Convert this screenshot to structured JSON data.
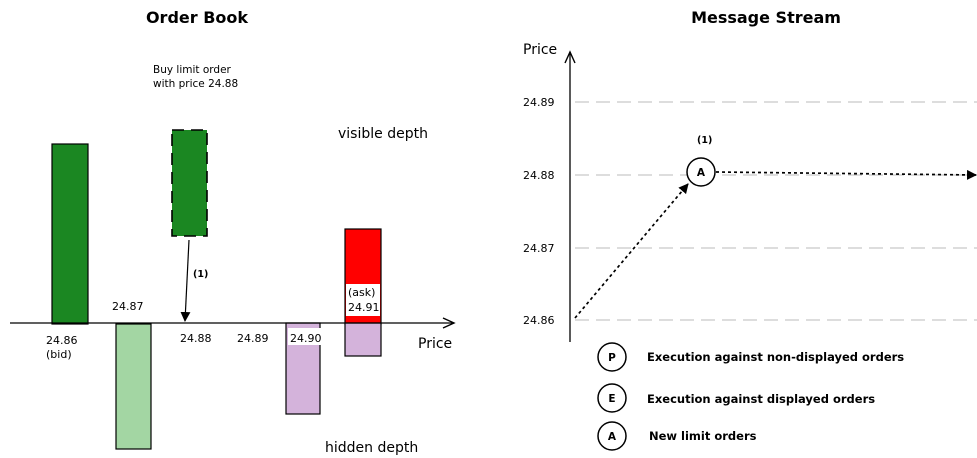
{
  "order_book": {
    "title": "Order Book",
    "annotation_line1": "Buy  limit order",
    "annotation_line2": "with price 24.88",
    "visible_label": "visible depth",
    "hidden_label": "hidden depth",
    "axis_label": "Price",
    "marker": "(1)",
    "price_labels": {
      "p2486": "24.86",
      "bid": "(bid)",
      "p2487": "24.87",
      "p2488": "24.88",
      "p2489": "24.89",
      "p2490": "24.90",
      "ask": "(ask)",
      "p2491": "24.91"
    },
    "colors": {
      "visible_bid": "#1b8722",
      "hidden_bid": "#a3d6a3",
      "hidden_ask": "#d4b3db",
      "ask": "#ff0000"
    }
  },
  "message_stream": {
    "title": "Message Stream",
    "y_axis_label": "Price",
    "y_ticks": [
      "24.89",
      "24.88",
      "24.87",
      "24.86"
    ],
    "marker": "(1)",
    "event_node_letter": "A"
  },
  "legend": [
    {
      "letter": "P",
      "text": "Execution against non-displayed orders"
    },
    {
      "letter": "E",
      "text": "Execution against displayed orders"
    },
    {
      "letter": "A",
      "text": "New limit orders"
    }
  ]
}
